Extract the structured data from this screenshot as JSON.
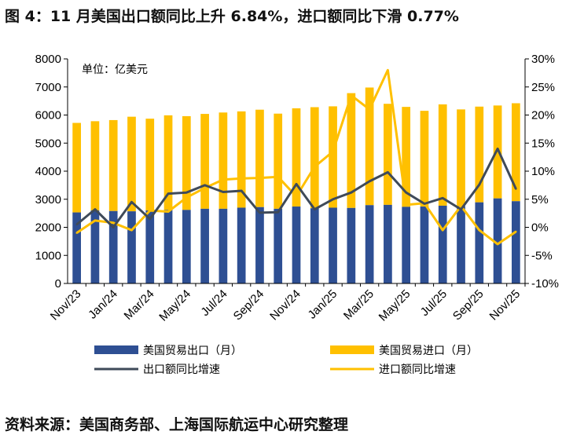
{
  "header": {
    "title": "图 4：11 月美国出口额同比上升 6.84%，进口额同比下滑 0.77%"
  },
  "footer": {
    "source": "资料来源：美国商务部、上海国际航运中心研究整理"
  },
  "colors": {
    "export_bar": "#2E4F93",
    "import_bar": "#FFC000",
    "export_line": "#3F4A59",
    "import_line": "#FFC000"
  },
  "chart_data": {
    "type": "bar",
    "unit_label": "单位：亿美元",
    "categories": [
      "Nov/23",
      "Dec/23",
      "Jan/24",
      "Feb/24",
      "Mar/24",
      "Apr/24",
      "May/24",
      "Jun/24",
      "Jul/24",
      "Aug/24",
      "Sep/24",
      "Oct/24",
      "Nov/24",
      "Dec/24",
      "Jan/25",
      "Feb/25",
      "Mar/25",
      "Apr/25",
      "May/25",
      "Jun/25",
      "Jul/25",
      "Aug/25",
      "Sep/25",
      "Oct/25",
      "Nov/25"
    ],
    "x_tick_labels": [
      "Nov/23",
      "Jan/24",
      "Mar/24",
      "May/24",
      "Jul/24",
      "Sep/24",
      "Nov/24",
      "Jan/25",
      "Mar/25",
      "May/25",
      "Jul/25",
      "Sep/25",
      "Nov/25"
    ],
    "y_left": {
      "min": 0,
      "max": 8000,
      "ticks": [
        "0",
        "1000",
        "2000",
        "3000",
        "4000",
        "5000",
        "6000",
        "7000",
        "8000"
      ]
    },
    "y_right": {
      "min": -10,
      "max": 30,
      "ticks": [
        "-10%",
        "-5%",
        "0%",
        "5%",
        "10%",
        "15%",
        "20%",
        "25%",
        "30%"
      ]
    },
    "series": [
      {
        "name": "美国贸易出口（月）",
        "kind": "bar",
        "axis": "left",
        "values": [
          2530,
          2600,
          2580,
          2570,
          2600,
          2620,
          2620,
          2660,
          2660,
          2700,
          2720,
          2660,
          2740,
          2680,
          2700,
          2690,
          2790,
          2800,
          2730,
          2740,
          2770,
          2750,
          2890,
          3030,
          2930
        ]
      },
      {
        "name": "美国贸易进口（月）",
        "kind": "bar",
        "axis": "left",
        "values": [
          5720,
          5780,
          5820,
          5940,
          5870,
          5990,
          5960,
          6040,
          6090,
          6130,
          6190,
          6050,
          6240,
          6280,
          6310,
          6780,
          6980,
          6400,
          6290,
          6150,
          6380,
          6200,
          6300,
          6340,
          6420
        ]
      },
      {
        "name": "出口额同比增速",
        "kind": "line",
        "axis": "right",
        "values": [
          0.5,
          3.2,
          0,
          4.5,
          1.5,
          6,
          6.2,
          7.5,
          6.3,
          6.5,
          2.6,
          2.7,
          7.7,
          3.2,
          5,
          6.2,
          8.2,
          9.8,
          6.2,
          4.2,
          5.2,
          3.2,
          7.6,
          14,
          6.84
        ]
      },
      {
        "name": "进口额同比增速",
        "kind": "line",
        "axis": "right",
        "values": [
          -1,
          1.2,
          0.8,
          -0.5,
          3,
          2.8,
          5.3,
          7,
          8.5,
          8.7,
          8.8,
          9,
          5.5,
          10.8,
          13.5,
          23.5,
          21,
          28,
          4,
          4.3,
          -0.5,
          3.8,
          -0.5,
          -3,
          -0.77
        ]
      }
    ]
  }
}
